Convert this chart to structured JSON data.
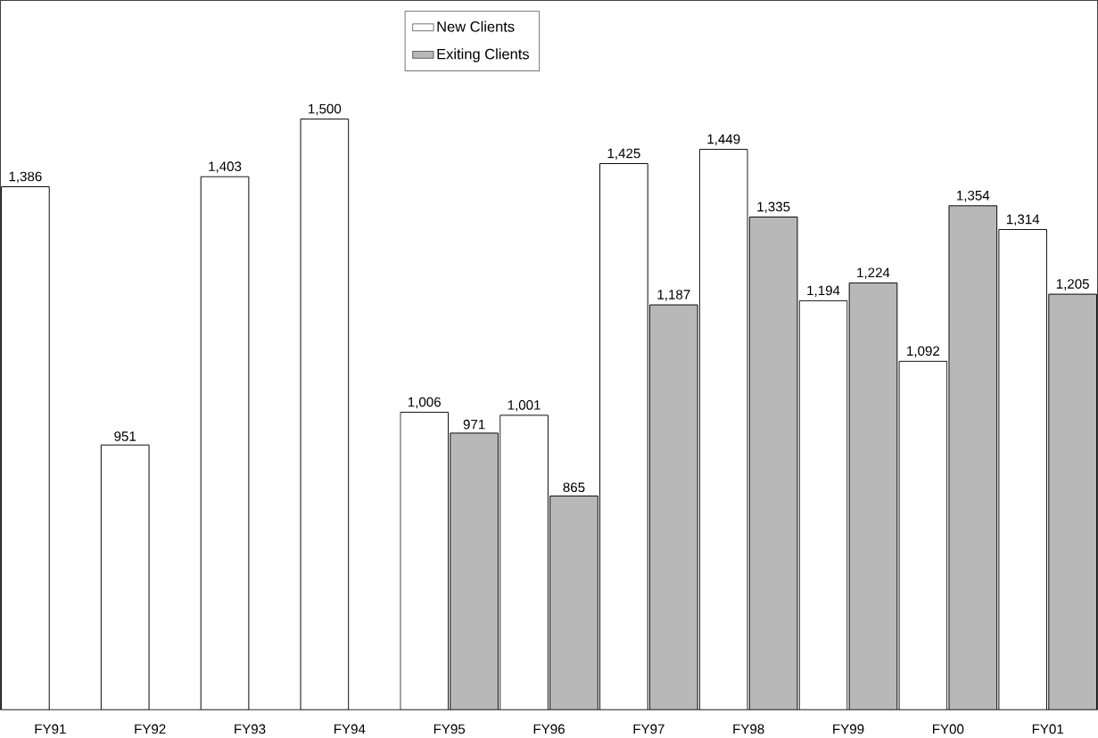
{
  "chart_data": {
    "type": "bar",
    "categories": [
      "FY91",
      "FY92",
      "FY93",
      "FY94",
      "FY95",
      "FY96",
      "FY97",
      "FY98",
      "FY99",
      "FY00",
      "FY01"
    ],
    "series": [
      {
        "name": "New Clients",
        "color": "#ffffff",
        "values": [
          1386,
          951,
          1403,
          1500,
          1006,
          1001,
          1425,
          1449,
          1194,
          1092,
          1314
        ],
        "value_labels": [
          "1,386",
          "951",
          "1,403",
          "1,500",
          "1,006",
          "1,001",
          "1,425",
          "1,449",
          "1,194",
          "1,092",
          "1,314"
        ]
      },
      {
        "name": "Exiting Clients",
        "color": "#b8b8b8",
        "values": [
          null,
          null,
          null,
          null,
          971,
          865,
          1187,
          1335,
          1224,
          1354,
          1205
        ],
        "value_labels": [
          null,
          null,
          null,
          null,
          "971",
          "865",
          "1,187",
          "1,335",
          "1,224",
          "1,354",
          "1,205"
        ]
      }
    ],
    "ylim": [
      505,
      1700
    ],
    "tick_labels": "x",
    "legend": "top"
  }
}
